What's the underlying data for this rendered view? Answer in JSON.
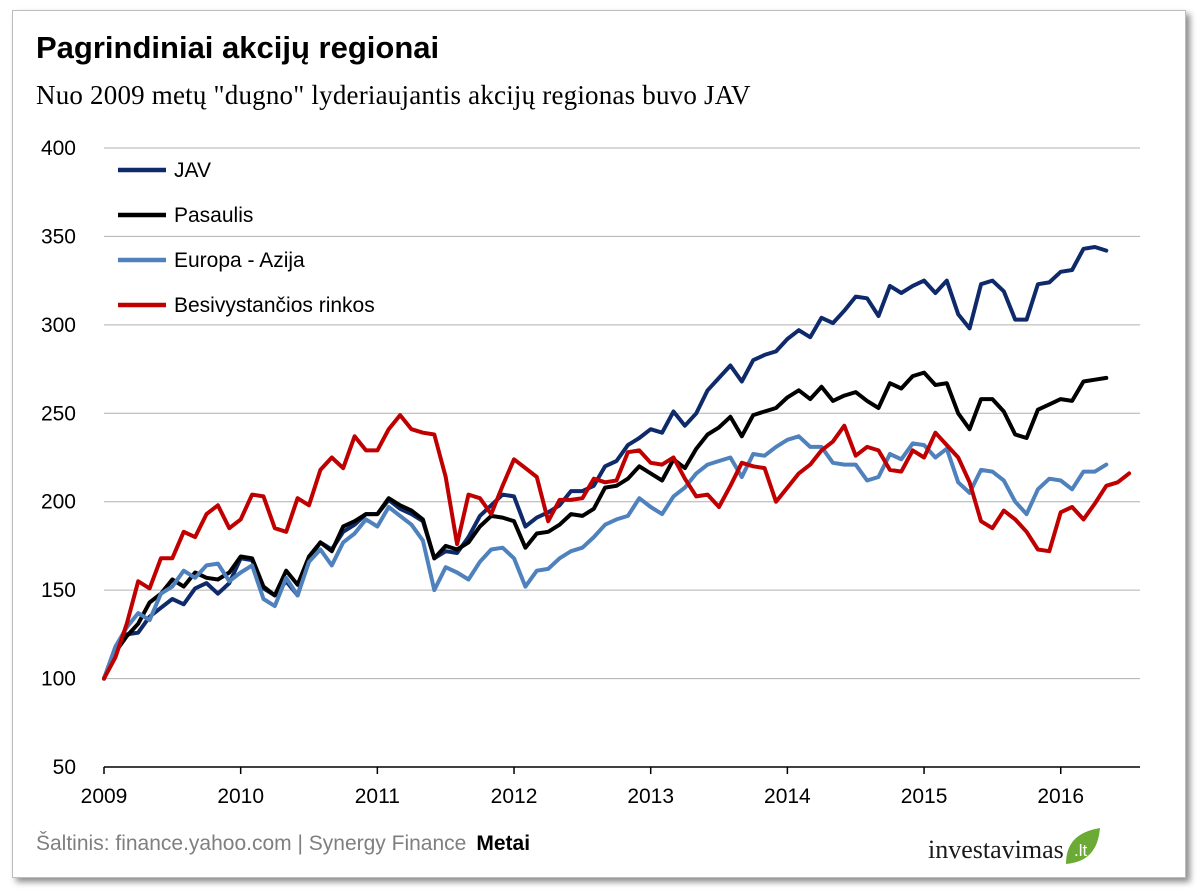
{
  "header": {
    "title": "Pagrindiniai akcijų regionai",
    "subtitle": "Nuo 2009 metų \"dugno\"  lyderiaujantis  akcijų  regionas  buvo  JAV"
  },
  "footer": {
    "source": "Šaltinis: finance.yahoo.com | Synergy Finance",
    "xlabel": "Metai",
    "logo_main": "investavimas",
    "logo_tld": ".lt"
  },
  "chart_data": {
    "type": "line",
    "xlabel": "Metai",
    "ylabel": "",
    "xlim": [
      2009,
      2016.58
    ],
    "ylim": [
      50,
      400
    ],
    "yticks": [
      50,
      100,
      150,
      200,
      250,
      300,
      350,
      400
    ],
    "xticks": [
      "2009",
      "2010",
      "2011",
      "2012",
      "2013",
      "2014",
      "2015",
      "2016"
    ],
    "grid": true,
    "legend_position": "top-left",
    "x_start": 2009,
    "x_step_months": 1,
    "series": [
      {
        "name": "JAV",
        "color": "#0f2a6b",
        "values": [
          100,
          117,
          125,
          126,
          135,
          140,
          145,
          142,
          151,
          154,
          148,
          154,
          168,
          167,
          151,
          147,
          155,
          147,
          168,
          177,
          173,
          183,
          187,
          193,
          193,
          201,
          196,
          193,
          189,
          168,
          172,
          171,
          180,
          192,
          198,
          204,
          203,
          186,
          191,
          194,
          198,
          206,
          206,
          209,
          220,
          223,
          232,
          236,
          241,
          239,
          251,
          243,
          250,
          263,
          270,
          277,
          268,
          280,
          283,
          285,
          292,
          297,
          293,
          304,
          301,
          308,
          316,
          315,
          305,
          322,
          318,
          322,
          325,
          318,
          325,
          306,
          298,
          323,
          325,
          319,
          303,
          303,
          323,
          324,
          330,
          331,
          343,
          344,
          342
        ]
      },
      {
        "name": "Pasaulis",
        "color": "#000000",
        "values": [
          100,
          115,
          124,
          131,
          143,
          148,
          156,
          152,
          160,
          157,
          156,
          160,
          169,
          168,
          152,
          147,
          161,
          153,
          169,
          177,
          172,
          186,
          189,
          193,
          193,
          202,
          198,
          195,
          190,
          168,
          175,
          173,
          177,
          186,
          192,
          191,
          189,
          174,
          182,
          183,
          187,
          193,
          192,
          196,
          208,
          209,
          213,
          220,
          216,
          212,
          224,
          219,
          230,
          238,
          242,
          248,
          237,
          249,
          251,
          253,
          259,
          263,
          258,
          265,
          257,
          260,
          262,
          257,
          253,
          267,
          264,
          271,
          273,
          266,
          267,
          250,
          241,
          258,
          258,
          251,
          238,
          236,
          252,
          255,
          258,
          257,
          268,
          269,
          270
        ]
      },
      {
        "name": "Europa - Azija",
        "color": "#4f81bd",
        "values": [
          100,
          118,
          129,
          137,
          133,
          148,
          152,
          161,
          157,
          164,
          165,
          155,
          160,
          164,
          145,
          141,
          157,
          147,
          166,
          173,
          164,
          177,
          182,
          190,
          186,
          197,
          192,
          187,
          178,
          150,
          163,
          160,
          156,
          166,
          173,
          174,
          168,
          152,
          161,
          162,
          168,
          172,
          174,
          180,
          187,
          190,
          192,
          202,
          197,
          193,
          203,
          208,
          216,
          221,
          223,
          225,
          214,
          227,
          226,
          231,
          235,
          237,
          231,
          231,
          222,
          221,
          221,
          212,
          214,
          227,
          224,
          233,
          232,
          225,
          230,
          211,
          205,
          218,
          217,
          212,
          200,
          193,
          207,
          213,
          212,
          207,
          217,
          217,
          221
        ]
      },
      {
        "name": "Besivystančios rinkos",
        "color": "#c00000",
        "values": [
          100,
          112,
          131,
          155,
          151,
          168,
          168,
          183,
          180,
          193,
          198,
          185,
          190,
          204,
          203,
          185,
          183,
          202,
          198,
          218,
          225,
          219,
          237,
          229,
          229,
          241,
          249,
          241,
          239,
          238,
          214,
          176,
          204,
          202,
          193,
          209,
          224,
          219,
          214,
          189,
          201,
          201,
          202,
          213,
          211,
          212,
          228,
          229,
          222,
          221,
          225,
          213,
          203,
          204,
          197,
          209,
          222,
          220,
          219,
          200,
          208,
          216,
          221,
          229,
          234,
          243,
          226,
          231,
          229,
          218,
          217,
          229,
          225,
          239,
          232,
          225,
          211,
          189,
          185,
          195,
          190,
          183,
          173,
          172,
          194,
          197,
          190,
          199,
          209,
          211,
          216
        ]
      }
    ]
  }
}
